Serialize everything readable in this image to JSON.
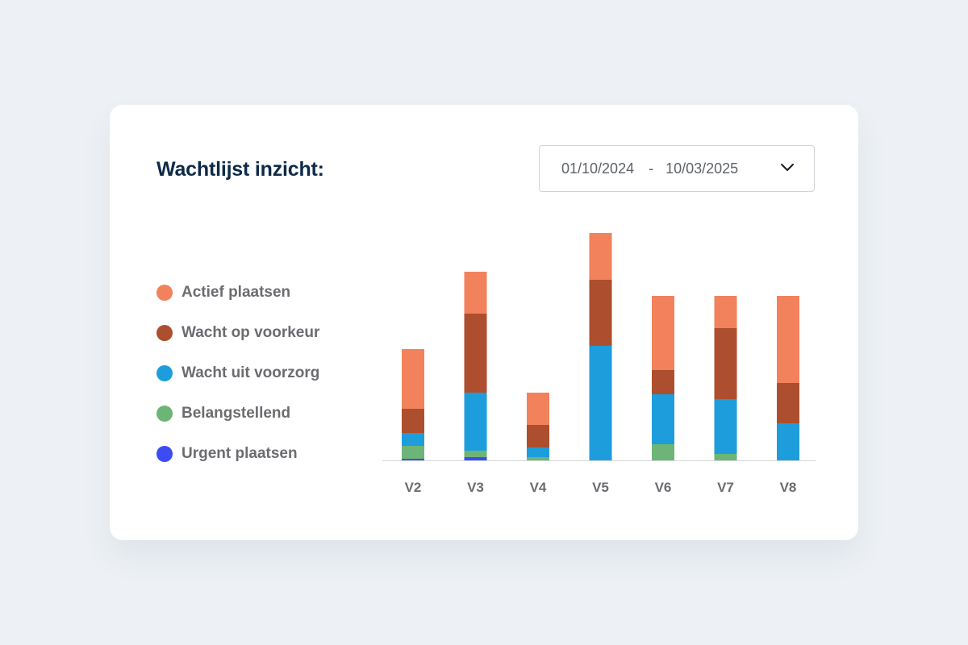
{
  "header": {
    "title": "Wachtlijst inzicht:",
    "date_from": "01/10/2024",
    "date_separator": "-",
    "date_to": "10/03/2025",
    "dropdown_icon": "chevron-down-icon"
  },
  "colors": {
    "title": "#0e2a47",
    "axis": "#d5d7da",
    "label": "#6b6c70"
  },
  "chart_data": {
    "type": "bar",
    "stacked": true,
    "title": "Wachtlijst inzicht:",
    "categories": [
      "V2",
      "V3",
      "V4",
      "V5",
      "V6",
      "V7",
      "V8"
    ],
    "xlabel": "",
    "ylabel": "",
    "ylim": [
      0,
      282
    ],
    "grid": false,
    "legend_position": "left",
    "series": [
      {
        "name": "Urgent plaatsen",
        "color": "#3b4cf5",
        "values": [
          2,
          4,
          0,
          0,
          0,
          0,
          0
        ]
      },
      {
        "name": "Belangstellend",
        "color": "#6db576",
        "values": [
          16,
          8,
          4,
          0,
          20,
          8,
          0
        ]
      },
      {
        "name": "Wacht uit voorzorg",
        "color": "#1e9ddc",
        "values": [
          16,
          72,
          12,
          142,
          62,
          68,
          46
        ]
      },
      {
        "name": "Wacht op voorkeur",
        "color": "#ad4f2e",
        "values": [
          30,
          98,
          28,
          82,
          30,
          88,
          50
        ]
      },
      {
        "name": "Actief plaatsen",
        "color": "#f2825c",
        "values": [
          74,
          52,
          40,
          58,
          92,
          40,
          108
        ]
      }
    ]
  }
}
